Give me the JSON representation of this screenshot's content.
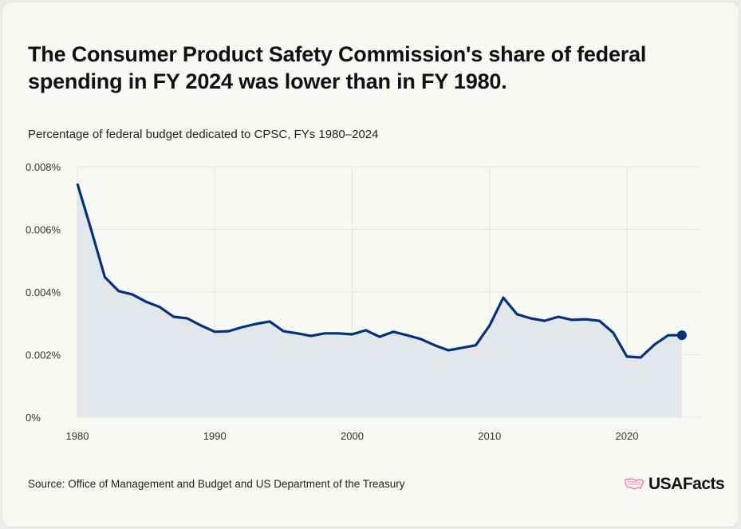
{
  "title": "The Consumer Product Safety Commission's share of federal spending in FY 2024 was lower than in FY 1980.",
  "subtitle": "Percentage of federal budget dedicated to CPSC, FYs 1980–2024",
  "source": "Source: Office of Management and Budget and US Department of the Treasury",
  "logo": "USAFacts",
  "colors": {
    "line": "#00337a",
    "area": "#e3e6ea",
    "grid": "#e4e4e2",
    "logo_accent": "#f060a8"
  },
  "chart_data": {
    "type": "area",
    "title": "",
    "xlabel": "",
    "ylabel": "",
    "xlim": [
      1980,
      2024
    ],
    "ylim": [
      0,
      0.008
    ],
    "grid": true,
    "x_ticks": [
      1980,
      1990,
      2000,
      2010,
      2020
    ],
    "x_tick_labels": [
      "1980",
      "1990",
      "2000",
      "2010",
      "2020"
    ],
    "y_ticks": [
      0,
      0.002,
      0.004,
      0.006,
      0.008
    ],
    "y_tick_labels": [
      "0%",
      "0.002%",
      "0.004%",
      "0.006%",
      "0.008%"
    ],
    "unit": "percent",
    "x": [
      1980,
      1981,
      1982,
      1983,
      1984,
      1985,
      1986,
      1987,
      1988,
      1989,
      1990,
      1991,
      1992,
      1993,
      1994,
      1995,
      1996,
      1997,
      1998,
      1999,
      2000,
      2001,
      2002,
      2003,
      2004,
      2005,
      2006,
      2007,
      2008,
      2009,
      2010,
      2011,
      2012,
      2013,
      2014,
      2015,
      2016,
      2017,
      2018,
      2019,
      2020,
      2021,
      2022,
      2023,
      2024
    ],
    "values": [
      0.00746,
      0.006,
      0.00448,
      0.00403,
      0.00392,
      0.00369,
      0.00352,
      0.00321,
      0.00316,
      0.00293,
      0.00273,
      0.00275,
      0.00288,
      0.00298,
      0.00306,
      0.00275,
      0.00268,
      0.0026,
      0.00268,
      0.00268,
      0.00265,
      0.00278,
      0.00257,
      0.00273,
      0.00262,
      0.0025,
      0.0023,
      0.00214,
      0.00222,
      0.0023,
      0.00293,
      0.00382,
      0.00329,
      0.00316,
      0.00308,
      0.00321,
      0.00311,
      0.00313,
      0.00308,
      0.0027,
      0.00194,
      0.00191,
      0.00232,
      0.00262,
      0.00262
    ],
    "end_marker": true
  }
}
